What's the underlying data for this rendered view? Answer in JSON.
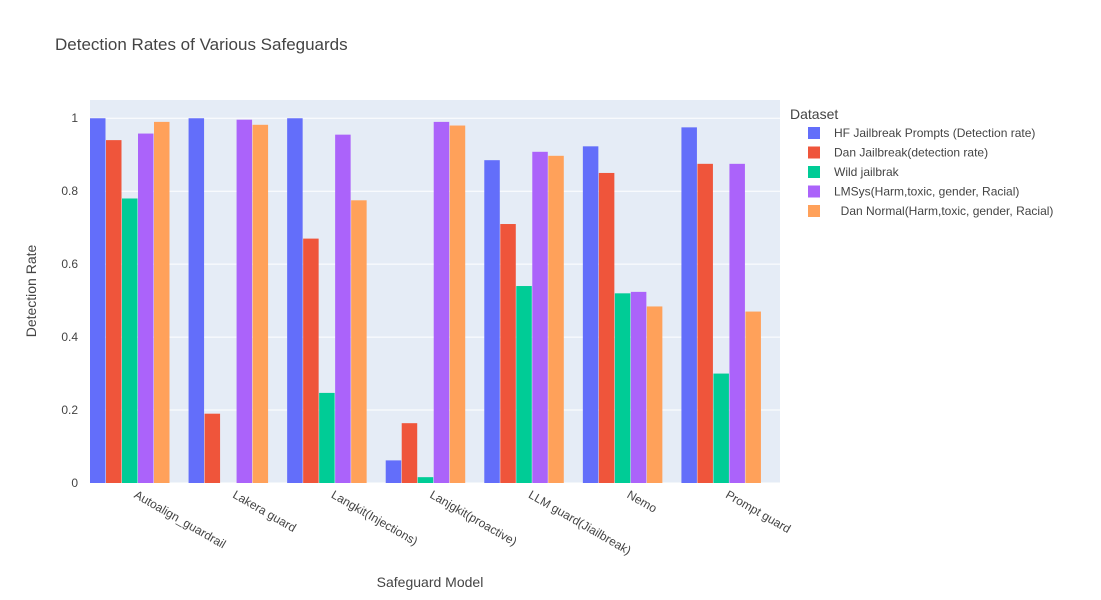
{
  "chart_data": {
    "type": "bar",
    "title": "Detection Rates of Various Safeguards",
    "xlabel": "Safeguard Model",
    "ylabel": "Detection Rate",
    "ylim": [
      0,
      1.05
    ],
    "yticks": [
      "0",
      "0.2",
      "0.4",
      "0.6",
      "0.8",
      "1"
    ],
    "grid": true,
    "legend_title": "Dataset",
    "legend_position": "right",
    "categories": [
      "Autoalign_guardrail",
      "Lakera guard",
      "Langkit(Injections)",
      "Lanjgkit(proactive)",
      "LLM guard(Jiailbreak)",
      "Nemo",
      "Prompt guard"
    ],
    "series": [
      {
        "name": "HF Jailbreak Prompts (Detection rate)",
        "color": "#636efa",
        "values": [
          1.0,
          1.0,
          1.0,
          0.062,
          0.885,
          0.923,
          0.975
        ]
      },
      {
        "name": "Dan Jailbreak(detection rate)",
        "color": "#ef553b",
        "values": [
          0.94,
          0.19,
          0.67,
          0.164,
          0.71,
          0.85,
          0.875
        ]
      },
      {
        "name": "Wild jailbrak",
        "color": "#00cc96",
        "values": [
          0.78,
          0,
          0.247,
          0.016,
          0.54,
          0.52,
          0.3
        ]
      },
      {
        "name": "LMSys(Harm,toxic, gender, Racial)",
        "color": "#ab63fa",
        "values": [
          0.958,
          0.996,
          0.955,
          0.99,
          0.908,
          0.524,
          0.875
        ]
      },
      {
        "name": "  Dan Normal(Harm,toxic, gender, Racial)",
        "color": "#ffa15a",
        "values": [
          0.99,
          0.982,
          0.775,
          0.98,
          0.897,
          0.484,
          0.47
        ]
      }
    ]
  }
}
